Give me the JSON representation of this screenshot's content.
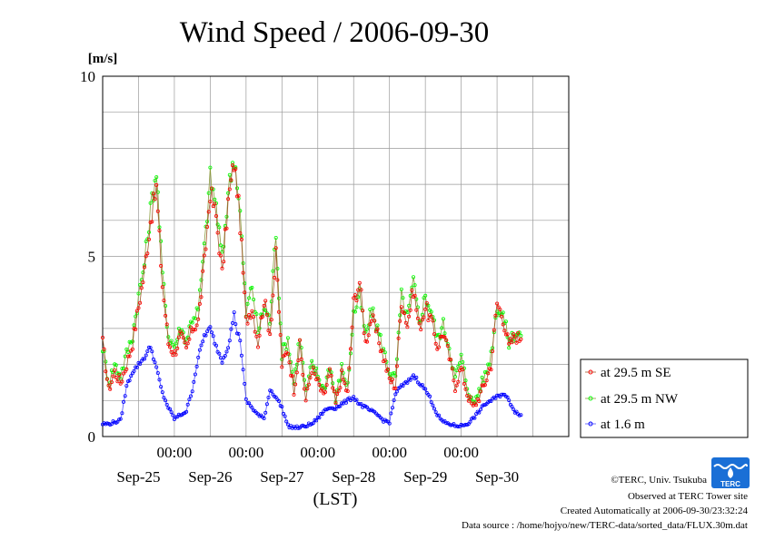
{
  "chart_data": {
    "type": "line",
    "title": "Wind Speed / 2006-09-30",
    "ylabel": "[m/s]",
    "xlabel": "(LST)",
    "ylim": [
      0,
      10
    ],
    "y_ticks": [
      "0",
      "5",
      "10"
    ],
    "x_range_days": [
      "2006-09-24T12:00",
      "2006-09-30T24:00"
    ],
    "time_tick_labels": [
      "00:00",
      "00:00",
      "00:00",
      "00:00",
      "00:00"
    ],
    "day_labels": [
      "Sep-25",
      "Sep-26",
      "Sep-27",
      "Sep-28",
      "Sep-29",
      "Sep-30"
    ],
    "grid": true,
    "legend_position": "right",
    "series": [
      {
        "name": "at 29.5 m SE",
        "color": "#ff0000",
        "line_color": "#a05a2c",
        "keypoints": [
          [
            "09-24 12:00",
            2.6
          ],
          [
            "09-24 14:00",
            1.3
          ],
          [
            "09-24 16:00",
            1.8
          ],
          [
            "09-24 18:00",
            1.5
          ],
          [
            "09-24 20:00",
            2.0
          ],
          [
            "09-24 22:00",
            2.6
          ],
          [
            "09-25 00:00",
            3.6
          ],
          [
            "09-25 02:00",
            4.6
          ],
          [
            "09-25 04:00",
            6.0
          ],
          [
            "09-25 06:00",
            6.9
          ],
          [
            "09-25 07:00",
            5.5
          ],
          [
            "09-25 08:00",
            4.2
          ],
          [
            "09-25 10:00",
            2.6
          ],
          [
            "09-25 12:00",
            2.3
          ],
          [
            "09-25 14:00",
            2.8
          ],
          [
            "09-25 16:00",
            2.4
          ],
          [
            "09-25 18:00",
            3.0
          ],
          [
            "09-25 20:00",
            3.2
          ],
          [
            "09-25 22:00",
            4.8
          ],
          [
            "09-26 00:00",
            6.8
          ],
          [
            "09-26 02:00",
            6.1
          ],
          [
            "09-26 04:00",
            4.5
          ],
          [
            "09-26 06:00",
            6.5
          ],
          [
            "09-26 08:00",
            7.6
          ],
          [
            "09-26 09:00",
            6.9
          ],
          [
            "09-26 10:00",
            5.9
          ],
          [
            "09-26 12:00",
            3.2
          ],
          [
            "09-26 14:00",
            3.6
          ],
          [
            "09-26 16:00",
            2.6
          ],
          [
            "09-26 18:00",
            3.8
          ],
          [
            "09-26 20:00",
            2.9
          ],
          [
            "09-26 22:00",
            5.0
          ],
          [
            "09-27 00:00",
            2.0
          ],
          [
            "09-27 02:00",
            2.4
          ],
          [
            "09-27 04:00",
            1.3
          ],
          [
            "09-27 06:00",
            2.5
          ],
          [
            "09-27 08:00",
            1.0
          ],
          [
            "09-27 10:00",
            1.9
          ],
          [
            "09-27 12:00",
            1.5
          ],
          [
            "09-27 14:00",
            1.1
          ],
          [
            "09-27 16:00",
            1.8
          ],
          [
            "09-27 18:00",
            0.9
          ],
          [
            "09-27 20:00",
            1.7
          ],
          [
            "09-27 22:00",
            1.2
          ],
          [
            "09-28 00:00",
            3.7
          ],
          [
            "09-28 02:00",
            4.3
          ],
          [
            "09-28 04:00",
            2.6
          ],
          [
            "09-28 06:00",
            3.3
          ],
          [
            "09-28 08:00",
            2.8
          ],
          [
            "09-28 10:00",
            2.2
          ],
          [
            "09-28 12:00",
            1.6
          ],
          [
            "09-28 14:00",
            1.4
          ],
          [
            "09-28 16:00",
            3.8
          ],
          [
            "09-28 18:00",
            3.1
          ],
          [
            "09-28 20:00",
            4.1
          ],
          [
            "09-28 22:00",
            3.0
          ],
          [
            "09-29 00:00",
            3.6
          ],
          [
            "09-29 02:00",
            3.2
          ],
          [
            "09-29 04:00",
            2.5
          ],
          [
            "09-29 06:00",
            2.9
          ],
          [
            "09-29 08:00",
            2.2
          ],
          [
            "09-29 10:00",
            1.4
          ],
          [
            "09-29 12:00",
            1.9
          ],
          [
            "09-29 14:00",
            1.2
          ],
          [
            "09-29 16:00",
            0.8
          ],
          [
            "09-29 18:00",
            1.1
          ],
          [
            "09-29 20:00",
            1.5
          ],
          [
            "09-29 22:00",
            2.0
          ],
          [
            "09-30 00:00",
            3.7
          ],
          [
            "09-30 02:00",
            3.3
          ],
          [
            "09-30 04:00",
            2.5
          ],
          [
            "09-30 06:00",
            2.8
          ],
          [
            "09-30 08:00",
            2.7
          ]
        ]
      },
      {
        "name": "at 29.5 m NW",
        "color": "#00ff00",
        "line_color": "#8a9a3a",
        "keypoints": [
          [
            "09-24 12:00",
            2.5
          ],
          [
            "09-24 14:00",
            1.5
          ],
          [
            "09-24 16:00",
            2.0
          ],
          [
            "09-24 18:00",
            1.7
          ],
          [
            "09-24 20:00",
            2.3
          ],
          [
            "09-24 22:00",
            2.8
          ],
          [
            "09-25 00:00",
            3.9
          ],
          [
            "09-25 02:00",
            4.8
          ],
          [
            "09-25 04:00",
            6.3
          ],
          [
            "09-25 06:00",
            7.4
          ],
          [
            "09-25 07:00",
            5.9
          ],
          [
            "09-25 08:00",
            4.5
          ],
          [
            "09-25 10:00",
            2.8
          ],
          [
            "09-25 12:00",
            2.5
          ],
          [
            "09-25 14:00",
            3.0
          ],
          [
            "09-25 16:00",
            2.7
          ],
          [
            "09-25 18:00",
            3.3
          ],
          [
            "09-25 20:00",
            3.5
          ],
          [
            "09-25 22:00",
            5.2
          ],
          [
            "09-26 00:00",
            7.2
          ],
          [
            "09-26 02:00",
            6.4
          ],
          [
            "09-26 04:00",
            4.9
          ],
          [
            "09-26 06:00",
            6.8
          ],
          [
            "09-26 08:00",
            7.8
          ],
          [
            "09-26 09:00",
            7.1
          ],
          [
            "09-26 10:00",
            6.2
          ],
          [
            "09-26 12:00",
            3.4
          ],
          [
            "09-26 14:00",
            4.2
          ],
          [
            "09-26 16:00",
            2.9
          ],
          [
            "09-26 18:00",
            3.6
          ],
          [
            "09-26 20:00",
            3.2
          ],
          [
            "09-26 22:00",
            5.7
          ],
          [
            "09-27 00:00",
            2.3
          ],
          [
            "09-27 02:00",
            2.7
          ],
          [
            "09-27 04:00",
            1.5
          ],
          [
            "09-27 06:00",
            2.8
          ],
          [
            "09-27 08:00",
            1.2
          ],
          [
            "09-27 10:00",
            2.0
          ],
          [
            "09-27 12:00",
            1.7
          ],
          [
            "09-27 14:00",
            1.3
          ],
          [
            "09-27 16:00",
            2.0
          ],
          [
            "09-27 18:00",
            1.0
          ],
          [
            "09-27 20:00",
            1.9
          ],
          [
            "09-27 22:00",
            1.4
          ],
          [
            "09-28 00:00",
            3.4
          ],
          [
            "09-28 02:00",
            3.9
          ],
          [
            "09-28 04:00",
            2.8
          ],
          [
            "09-28 06:00",
            3.5
          ],
          [
            "09-28 08:00",
            3.0
          ],
          [
            "09-28 10:00",
            2.4
          ],
          [
            "09-28 12:00",
            1.8
          ],
          [
            "09-28 14:00",
            1.6
          ],
          [
            "09-28 16:00",
            3.9
          ],
          [
            "09-28 18:00",
            3.3
          ],
          [
            "09-28 20:00",
            4.3
          ],
          [
            "09-28 22:00",
            3.2
          ],
          [
            "09-29 00:00",
            3.9
          ],
          [
            "09-29 02:00",
            3.5
          ],
          [
            "09-29 04:00",
            2.7
          ],
          [
            "09-29 06:00",
            3.1
          ],
          [
            "09-29 08:00",
            2.5
          ],
          [
            "09-29 10:00",
            1.6
          ],
          [
            "09-29 12:00",
            2.2
          ],
          [
            "09-29 14:00",
            1.4
          ],
          [
            "09-29 16:00",
            0.9
          ],
          [
            "09-29 18:00",
            1.3
          ],
          [
            "09-29 20:00",
            1.7
          ],
          [
            "09-29 22:00",
            2.3
          ],
          [
            "09-30 00:00",
            3.6
          ],
          [
            "09-30 02:00",
            3.4
          ],
          [
            "09-30 04:00",
            2.6
          ],
          [
            "09-30 06:00",
            2.9
          ],
          [
            "09-30 08:00",
            2.8
          ]
        ]
      },
      {
        "name": "at 1.6 m",
        "color": "#0000ff",
        "line_color": "#5050ff",
        "keypoints": [
          [
            "09-24 12:00",
            0.35
          ],
          [
            "09-24 14:00",
            0.35
          ],
          [
            "09-24 16:00",
            0.4
          ],
          [
            "09-24 18:00",
            0.45
          ],
          [
            "09-24 20:00",
            1.4
          ],
          [
            "09-24 22:00",
            1.8
          ],
          [
            "09-25 00:00",
            2.0
          ],
          [
            "09-25 02:00",
            2.2
          ],
          [
            "09-25 04:00",
            2.5
          ],
          [
            "09-25 06:00",
            1.9
          ],
          [
            "09-25 08:00",
            1.2
          ],
          [
            "09-25 10:00",
            0.8
          ],
          [
            "09-25 12:00",
            0.5
          ],
          [
            "09-25 14:00",
            0.6
          ],
          [
            "09-25 16:00",
            0.7
          ],
          [
            "09-25 18:00",
            1.3
          ],
          [
            "09-25 20:00",
            2.2
          ],
          [
            "09-25 22:00",
            2.8
          ],
          [
            "09-26 00:00",
            3.0
          ],
          [
            "09-26 02:00",
            2.5
          ],
          [
            "09-26 04:00",
            2.1
          ],
          [
            "09-26 06:00",
            2.5
          ],
          [
            "09-26 08:00",
            3.4
          ],
          [
            "09-26 09:00",
            2.9
          ],
          [
            "09-26 10:00",
            2.7
          ],
          [
            "09-26 12:00",
            1.0
          ],
          [
            "09-26 14:00",
            0.8
          ],
          [
            "09-26 16:00",
            0.6
          ],
          [
            "09-26 18:00",
            0.5
          ],
          [
            "09-26 20:00",
            1.3
          ],
          [
            "09-26 22:00",
            1.1
          ],
          [
            "09-27 00:00",
            0.8
          ],
          [
            "09-27 02:00",
            0.3
          ],
          [
            "09-27 04:00",
            0.25
          ],
          [
            "09-27 06:00",
            0.25
          ],
          [
            "09-27 08:00",
            0.3
          ],
          [
            "09-27 10:00",
            0.35
          ],
          [
            "09-27 12:00",
            0.5
          ],
          [
            "09-27 14:00",
            0.7
          ],
          [
            "09-27 16:00",
            0.8
          ],
          [
            "09-27 18:00",
            0.8
          ],
          [
            "09-27 20:00",
            0.9
          ],
          [
            "09-27 22:00",
            1.0
          ],
          [
            "09-28 00:00",
            1.1
          ],
          [
            "09-28 02:00",
            0.9
          ],
          [
            "09-28 04:00",
            0.8
          ],
          [
            "09-28 06:00",
            0.7
          ],
          [
            "09-28 08:00",
            0.6
          ],
          [
            "09-28 10:00",
            0.45
          ],
          [
            "09-28 12:00",
            0.4
          ],
          [
            "09-28 14:00",
            1.2
          ],
          [
            "09-28 16:00",
            1.4
          ],
          [
            "09-28 18:00",
            1.5
          ],
          [
            "09-28 20:00",
            1.7
          ],
          [
            "09-28 22:00",
            1.5
          ],
          [
            "09-29 00:00",
            1.3
          ],
          [
            "09-29 02:00",
            1.0
          ],
          [
            "09-29 04:00",
            0.6
          ],
          [
            "09-29 06:00",
            0.4
          ],
          [
            "09-29 08:00",
            0.35
          ],
          [
            "09-29 10:00",
            0.3
          ],
          [
            "09-29 12:00",
            0.3
          ],
          [
            "09-29 14:00",
            0.35
          ],
          [
            "09-29 16:00",
            0.5
          ],
          [
            "09-29 18:00",
            0.7
          ],
          [
            "09-29 20:00",
            0.9
          ],
          [
            "09-29 22:00",
            1.0
          ],
          [
            "09-30 00:00",
            1.1
          ],
          [
            "09-30 02:00",
            1.2
          ],
          [
            "09-30 04:00",
            1.0
          ],
          [
            "09-30 06:00",
            0.7
          ],
          [
            "09-30 08:00",
            0.6
          ]
        ]
      }
    ]
  },
  "footer": {
    "copyright": "©TERC, Univ. Tsukuba",
    "observed": "Observed at TERC Tower site",
    "created": "Created Automatically at 2006-09-30/23:32:24",
    "source": "Data source : /home/hojyo/new/TERC-data/sorted_data/FLUX.30m.dat"
  },
  "logo": {
    "text": "TERC",
    "color": "#1a6fd6"
  }
}
